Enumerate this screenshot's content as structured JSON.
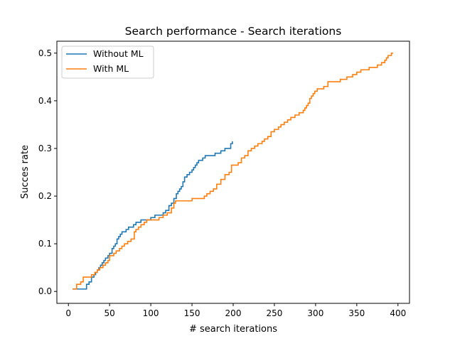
{
  "chart_data": {
    "type": "line",
    "title": "Search performance - Search iterations",
    "xlabel": "# search iterations",
    "ylabel": "Succes rate",
    "xlim": [
      -14,
      414
    ],
    "ylim": [
      -0.025,
      0.525
    ],
    "xticks": [
      0,
      50,
      100,
      150,
      200,
      250,
      300,
      350,
      400
    ],
    "yticks": [
      0.0,
      0.1,
      0.2,
      0.3,
      0.4,
      0.5
    ],
    "ytick_labels": [
      "0.0",
      "0.1",
      "0.2",
      "0.3",
      "0.4",
      "0.5"
    ],
    "grid": false,
    "legend_position": "upper-left",
    "series": [
      {
        "name": "Without ML",
        "color": "#1f77b4",
        "step": true,
        "x": [
          5,
          10,
          22,
          25,
          28,
          31,
          33,
          35,
          37,
          39,
          41,
          43,
          45,
          48,
          50,
          53,
          55,
          57,
          59,
          61,
          63,
          65,
          67,
          70,
          73,
          76,
          79,
          82,
          85,
          88,
          92,
          100,
          105,
          110,
          115,
          118,
          122,
          125,
          128,
          131,
          133,
          135,
          137,
          139,
          141,
          144,
          147,
          150,
          152,
          154,
          156,
          158,
          160,
          163,
          166,
          175,
          178,
          185,
          190,
          195,
          197,
          199
        ],
        "y": [
          0.005,
          0.005,
          0.015,
          0.02,
          0.03,
          0.035,
          0.04,
          0.045,
          0.05,
          0.055,
          0.06,
          0.065,
          0.07,
          0.075,
          0.08,
          0.09,
          0.095,
          0.1,
          0.11,
          0.115,
          0.12,
          0.125,
          0.125,
          0.13,
          0.135,
          0.135,
          0.14,
          0.145,
          0.145,
          0.15,
          0.15,
          0.155,
          0.16,
          0.16,
          0.165,
          0.17,
          0.18,
          0.185,
          0.195,
          0.205,
          0.21,
          0.215,
          0.22,
          0.23,
          0.24,
          0.245,
          0.25,
          0.255,
          0.26,
          0.265,
          0.27,
          0.275,
          0.275,
          0.28,
          0.285,
          0.285,
          0.29,
          0.295,
          0.3,
          0.3,
          0.31,
          0.315
        ]
      },
      {
        "name": "With ML",
        "color": "#ff7f0e",
        "step": true,
        "x": [
          5,
          10,
          15,
          18,
          25,
          28,
          32,
          35,
          38,
          42,
          45,
          48,
          50,
          55,
          58,
          62,
          65,
          68,
          72,
          76,
          80,
          82,
          85,
          88,
          92,
          95,
          100,
          110,
          115,
          120,
          125,
          128,
          130,
          135,
          140,
          150,
          160,
          165,
          168,
          172,
          176,
          180,
          185,
          190,
          195,
          198,
          200,
          206,
          210,
          214,
          218,
          222,
          226,
          230,
          235,
          238,
          242,
          246,
          250,
          255,
          258,
          262,
          266,
          270,
          275,
          280,
          285,
          287,
          289,
          291,
          293,
          295,
          297,
          299,
          302,
          305,
          310,
          315,
          320,
          325,
          330,
          338,
          345,
          350,
          355,
          360,
          365,
          370,
          375,
          380,
          384,
          386,
          388,
          390,
          392,
          394
        ],
        "y": [
          0.005,
          0.015,
          0.02,
          0.03,
          0.03,
          0.035,
          0.04,
          0.045,
          0.05,
          0.055,
          0.06,
          0.065,
          0.075,
          0.08,
          0.085,
          0.09,
          0.095,
          0.1,
          0.105,
          0.11,
          0.125,
          0.13,
          0.135,
          0.14,
          0.145,
          0.15,
          0.15,
          0.155,
          0.16,
          0.165,
          0.175,
          0.185,
          0.19,
          0.19,
          0.19,
          0.195,
          0.195,
          0.2,
          0.205,
          0.21,
          0.215,
          0.225,
          0.235,
          0.245,
          0.25,
          0.265,
          0.265,
          0.27,
          0.28,
          0.285,
          0.295,
          0.3,
          0.305,
          0.31,
          0.315,
          0.32,
          0.325,
          0.335,
          0.34,
          0.345,
          0.35,
          0.355,
          0.36,
          0.365,
          0.37,
          0.375,
          0.38,
          0.385,
          0.39,
          0.395,
          0.405,
          0.41,
          0.415,
          0.42,
          0.425,
          0.425,
          0.43,
          0.44,
          0.44,
          0.44,
          0.445,
          0.45,
          0.455,
          0.46,
          0.465,
          0.465,
          0.47,
          0.47,
          0.475,
          0.48,
          0.485,
          0.49,
          0.495,
          0.495,
          0.5,
          0.5
        ]
      }
    ]
  }
}
